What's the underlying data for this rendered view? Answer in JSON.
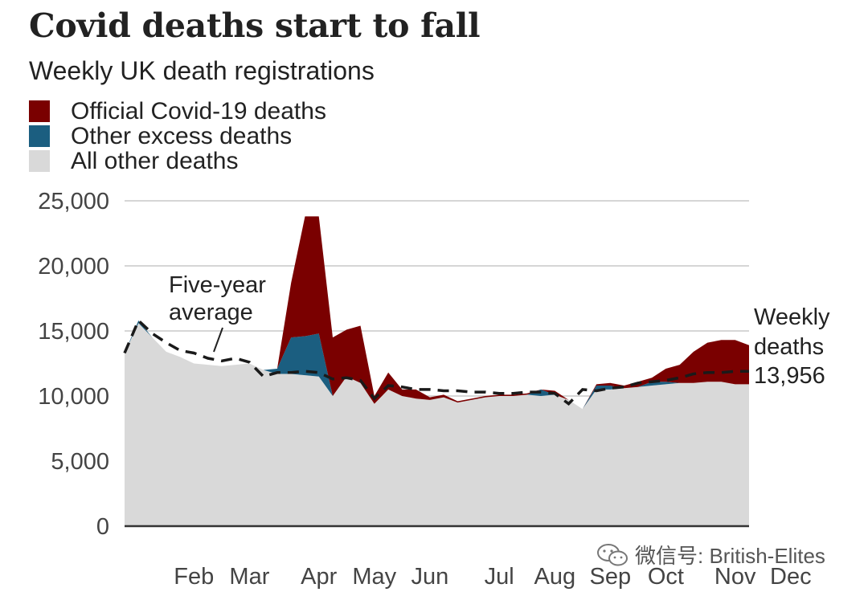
{
  "header": {
    "title": "Covid deaths start to fall",
    "subtitle": "Weekly UK death registrations"
  },
  "legend": [
    {
      "label": "Official Covid-19 deaths",
      "color": "#7a0000"
    },
    {
      "label": "Other excess deaths",
      "color": "#1b5e80"
    },
    {
      "label": "All other deaths",
      "color": "#d9d9d9"
    }
  ],
  "annotations": {
    "five_year_line1": "Five-year",
    "five_year_line2": "average",
    "weekly_line1": "Weekly",
    "weekly_line2": "deaths",
    "weekly_value": "13,956"
  },
  "watermark": {
    "text": "微信号: British-Elites",
    "icon": "wechat-icon"
  },
  "chart_data": {
    "type": "area",
    "stacked": true,
    "ylim": [
      0,
      25000
    ],
    "yticks": [
      {
        "value": 0,
        "label": "0"
      },
      {
        "value": 5000,
        "label": "5,000"
      },
      {
        "value": 10000,
        "label": "10,000"
      },
      {
        "value": 15000,
        "label": "15,000"
      },
      {
        "value": 20000,
        "label": "20,000"
      },
      {
        "value": 25000,
        "label": "25,000"
      }
    ],
    "x_tick_labels": [
      {
        "label": "Feb",
        "week": 5
      },
      {
        "label": "Mar",
        "week": 9
      },
      {
        "label": "Apr",
        "week": 14
      },
      {
        "label": "May",
        "week": 18
      },
      {
        "label": "Jun",
        "week": 22
      },
      {
        "label": "Jul",
        "week": 27
      },
      {
        "label": "Aug",
        "week": 31
      },
      {
        "label": "Sep",
        "week": 35
      },
      {
        "label": "Oct",
        "week": 39
      },
      {
        "label": "Nov",
        "week": 44
      },
      {
        "label": "Dec",
        "week": 48
      }
    ],
    "grid": true,
    "series": [
      {
        "name": "All other deaths",
        "color": "#d9d9d9",
        "values": [
          13300,
          15600,
          14500,
          13400,
          13000,
          12500,
          12400,
          12300,
          12400,
          12500,
          12000,
          11700,
          11700,
          11600,
          11500,
          10000,
          11500,
          11000,
          9400,
          10500,
          10000,
          9800,
          9700,
          9900,
          9500,
          9700,
          9900,
          10000,
          10000,
          10100,
          10000,
          10100,
          9700,
          9000,
          10500,
          10500,
          10600,
          10700,
          10800,
          10900,
          11000,
          11000,
          11100,
          11100,
          10900,
          10900
        ]
      },
      {
        "name": "Other excess deaths",
        "color": "#1b5e80",
        "values": [
          0,
          200,
          0,
          0,
          0,
          0,
          0,
          0,
          0,
          0,
          0,
          400,
          2800,
          3000,
          3300,
          0,
          0,
          0,
          0,
          0,
          0,
          0,
          0,
          0,
          0,
          0,
          0,
          0,
          0,
          0,
          500,
          0,
          0,
          0,
          300,
          300,
          0,
          0,
          300,
          200,
          0,
          0,
          0,
          0,
          0,
          0
        ]
      },
      {
        "name": "Official Covid-19 deaths",
        "color": "#7a0000",
        "values": [
          0,
          0,
          0,
          0,
          0,
          0,
          0,
          0,
          0,
          0,
          0,
          0,
          4200,
          9200,
          9000,
          4500,
          3600,
          4400,
          600,
          1300,
          500,
          700,
          200,
          200,
          100,
          100,
          100,
          100,
          100,
          100,
          0,
          300,
          0,
          0,
          100,
          200,
          200,
          400,
          300,
          1000,
          1400,
          2400,
          3000,
          3200,
          3400,
          3000
        ]
      }
    ],
    "five_year_average": [
      13300,
      15800,
      14800,
      14100,
      13500,
      13300,
      12900,
      12700,
      12900,
      12600,
      11500,
      11800,
      11800,
      11900,
      11800,
      11300,
      11400,
      11200,
      9800,
      10800,
      10700,
      10500,
      10500,
      10400,
      10400,
      10300,
      10300,
      10200,
      10200,
      10300,
      10300,
      10200,
      9400,
      10500,
      10400,
      10600,
      10700,
      11000,
      11100,
      11200,
      11400,
      11700,
      11800,
      11800,
      11900,
      11900
    ]
  }
}
